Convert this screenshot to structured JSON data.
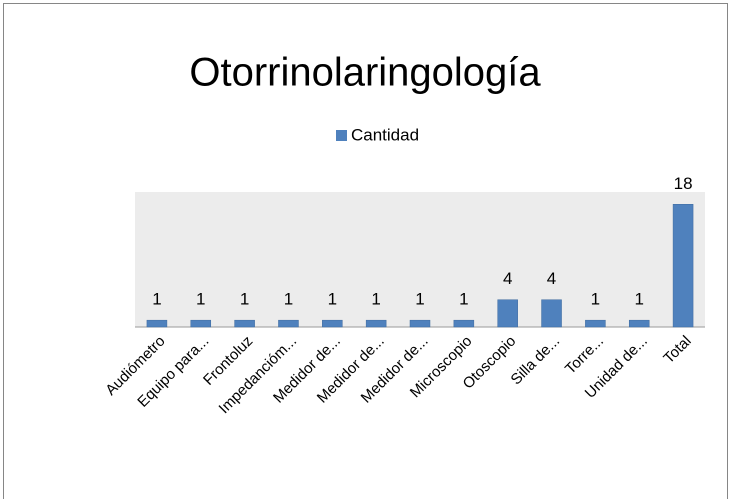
{
  "chart_data": {
    "type": "bar",
    "title": "Otorrinolaringología",
    "categories": [
      "Audiómetro",
      "Equipo para...",
      "Frontoluz",
      "Impedancióm...",
      "Medidor de...",
      "Medidor de...",
      "Medidor de...",
      "Microscopio",
      "Otoscopio",
      "Silla de...",
      "Torre...",
      "Unidad de...",
      "Total"
    ],
    "series": [
      {
        "name": "Cantidad",
        "color": "#4f81bd",
        "values": [
          1,
          1,
          1,
          1,
          1,
          1,
          1,
          1,
          4,
          4,
          1,
          1,
          18
        ]
      }
    ]
  }
}
